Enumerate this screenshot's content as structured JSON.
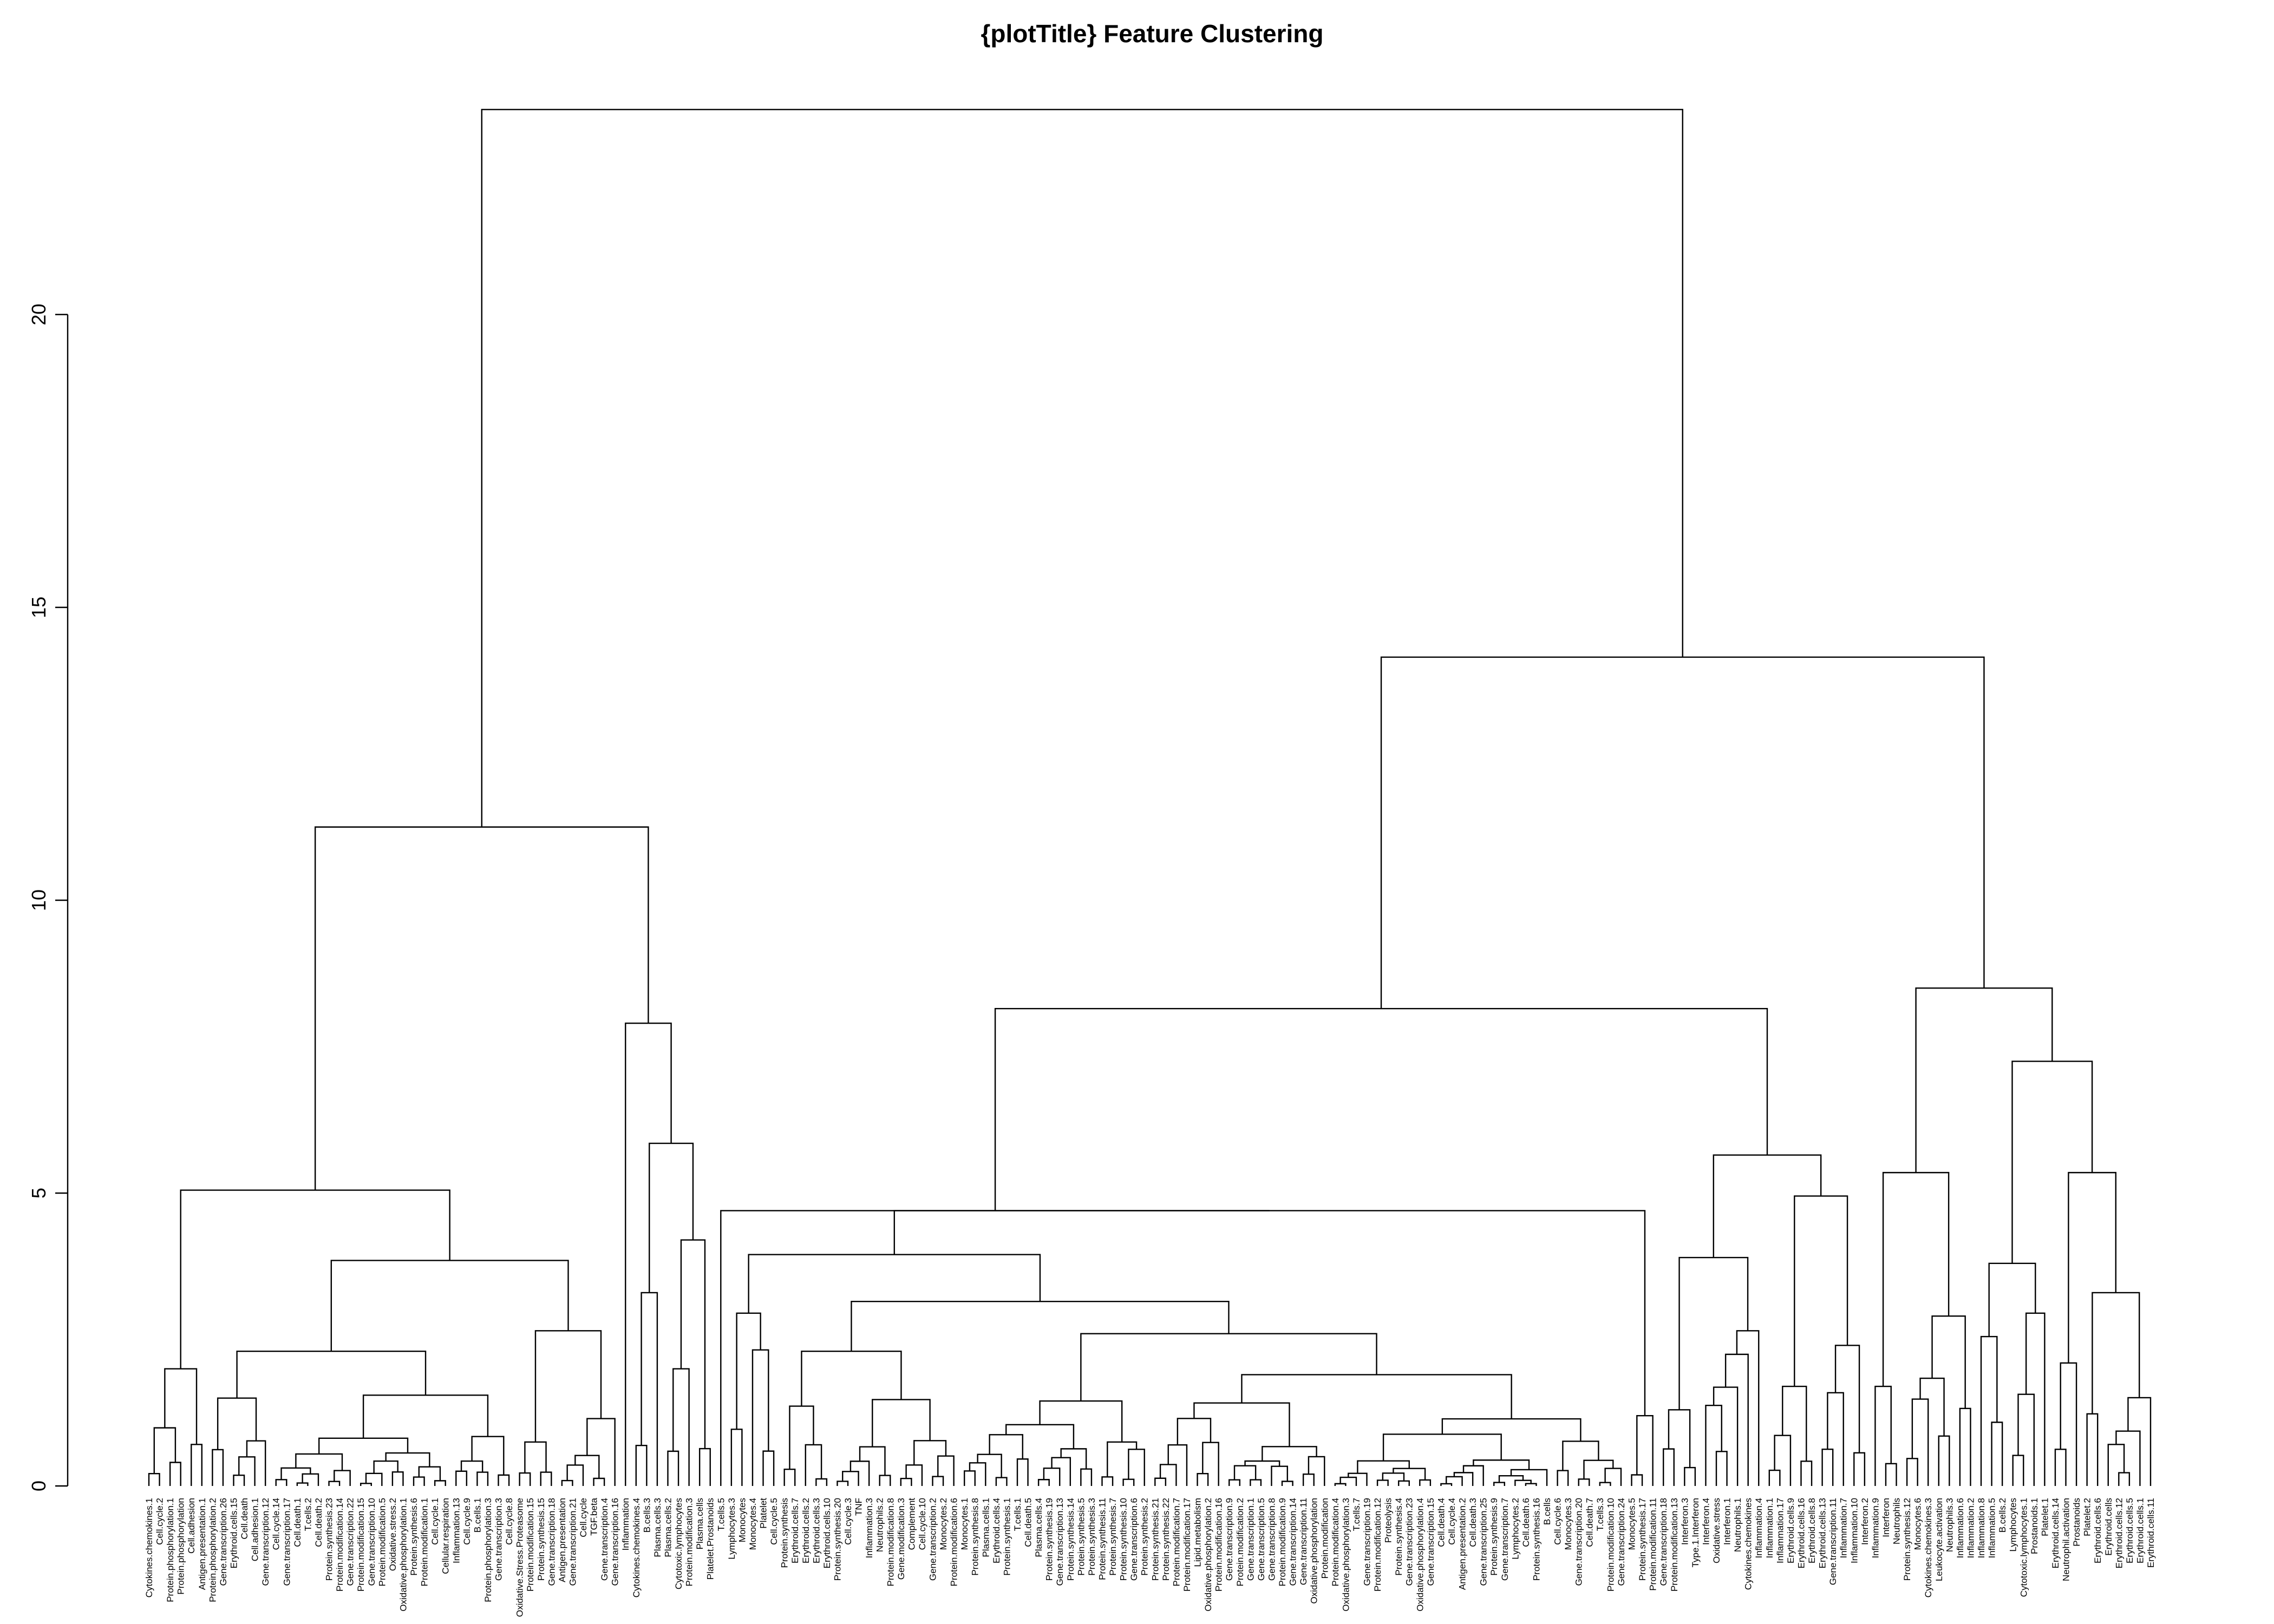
{
  "chart_data": {
    "type": "dendrogram",
    "title": "{plotTitle} Feature Clustering",
    "xlabel": "",
    "ylabel": "",
    "ylim": [
      0,
      23.5
    ],
    "yticks": [
      0,
      5,
      10,
      15,
      20
    ],
    "leaf_order": [
      "Cytokines.chemokines.1",
      "Cell.cycle.2",
      "Protein.phosphorylation.1",
      "Protein.phosphorylation",
      "Cell.adhesion",
      "Antigen.presentation.1",
      "Protein.phosphorylation.2",
      "Gene.transcription.26",
      "Erythroid.cells.15",
      "Cell.death",
      "Cell.adhesion.1",
      "Gene.transcription.12",
      "Cell.cycle.14",
      "Gene.transcription.17",
      "Cell.death.1",
      "T.cells.2",
      "Cell.death.2",
      "Protein.synthesis.23",
      "Protein.modification.14",
      "Gene.transcription.22",
      "Protein.modification.15",
      "Gene.transcription.10",
      "Protein.modification.5",
      "Oxidative.stress.2",
      "Oxidative.phosphorylation.1",
      "Protein.synthesis.6",
      "Protein.modification.1",
      "Cell.cycle.1",
      "Cellular.respiration",
      "Inflammation.13",
      "Cell.cycle.9",
      "B.cells.1",
      "Protein.phosphorylation.3",
      "Gene.transcription.3",
      "Cell.cycle.8",
      "Oxidative.Stress.Proteasome",
      "Protein.modification.15",
      "Protein.synthesis.15",
      "Gene.transcription.18",
      "Antigen.presentation",
      "Gene.transcription.21",
      "Cell.cycle",
      "TGF.beta",
      "Gene.transcription.4",
      "Gene.transcription.16",
      "Inflammation",
      "Cytokines.chemokines.4",
      "B.cells.3",
      "Plasma.cells.3",
      "Plasma.cells.2",
      "Cytotoxic.lymphocytes",
      "Protein.modification.3",
      "Plasma.cells",
      "Platelet.Prostanoids",
      "T.cells.5",
      "Lymphocytes.3",
      "Monocytes",
      "Monocytes.4",
      "Platelet",
      "Cell.cycle.5",
      "Protein.synthesis",
      "Erythroid.cells.7",
      "Erythroid.cells.2",
      "Erythroid.cells.3",
      "Erythroid.cells.10",
      "Protein.synthesis.20",
      "Cell.cycle.3",
      "TNF",
      "Inflammation.3",
      "Neutrophils.2",
      "Protein.modification.8",
      "Gene.modification.3",
      "Complement",
      "Cell.cycle.10",
      "Gene.transcription.2",
      "Monocytes.2",
      "Protein.modification.6",
      "Monocytes.1",
      "Protein.synthesis.8",
      "Plasma.cells.1",
      "Erythroid.cells.4",
      "Protein.synthesis.1",
      "T.cells.1",
      "Cell.death.5",
      "Plasma.cells.4",
      "Protein.synthesis.19",
      "Gene.transcription.13",
      "Protein.synthesis.14",
      "Protein.synthesis.5",
      "Protein.synthesis.3",
      "Protein.synthesis.11",
      "Protein.synthesis.7",
      "Protein.synthesis.10",
      "Gene.transcription.6",
      "Protein.synthesis.2",
      "Protein.synthesis.21",
      "Protein.synthesis.22",
      "Protein.modification.7",
      "Protein.modification.17",
      "Lipid.metabolism",
      "Oxidative.phosphorylation.2",
      "Protein.modification.16",
      "Gene.transcription.9",
      "Protein.modification.2",
      "Gene.transcription.1",
      "Gene.transcription.5",
      "Gene.transcription.8",
      "Protein.modification.9",
      "Gene.transcription.14",
      "Gene.transcription.11",
      "Oxidative.phosphorylation",
      "Protein.modification",
      "Protein.modification.4",
      "Oxidative.phosphorylation.3",
      "T.cells.7",
      "Gene.transcription.19",
      "Protein.modification.12",
      "Proteolysis",
      "Protein.synthesis.4",
      "Gene.transcription.23",
      "Oxidative.phosphorylation.4",
      "Gene.transcription.15",
      "Cell.death.4",
      "Cell.cycle.4",
      "Antigen.presentation.2",
      "Cell.death.3",
      "Gene.transcription.25",
      "Protein.synthesis.9",
      "Gene.transcription.7",
      "Lymphocytes.2",
      "Cell.death.6",
      "Protein.synthesis.16",
      "B.cells",
      "Cell.cycle.6",
      "Monocytes.3",
      "Gene.transcription.20",
      "Cell.death.7",
      "T.cells.3",
      "Protein.modification.10",
      "Gene.transcription.24",
      "Monocytes.5",
      "Protein.synthesis.17",
      "Protein.modification.11",
      "Gene.transcription.18",
      "Protein.modification.13",
      "Interferon.3",
      "Type.1.Interferon",
      "Interferon.4",
      "Oxidative.stress",
      "Interferon.1",
      "Neutrophils.1",
      "Cytokines.chemokines",
      "Inflammation.4",
      "Inflammation.1",
      "Inflammation.17",
      "Erythroid.cells.9",
      "Erythroid.cells.16",
      "Erythroid.cells.8",
      "Erythroid.cells.13",
      "Gene.transcription.11",
      "Inflammation.7",
      "Inflammation.10",
      "Interferon.2",
      "Inflammation.9",
      "Interferon",
      "Neutrophils",
      "Protein.synthesis.12",
      "Monocytes.6",
      "Cytokines.chemokines.3",
      "Leukocyte.activation",
      "Neutrophils.3",
      "Inflammation.6",
      "Inflammation.2",
      "Inflammation.8",
      "Inflammation.5",
      "B.cells.2",
      "Lymphocytes",
      "Cytotoxic.lymphocytes.1",
      "Prostanoids.1",
      "Platelet.1",
      "Erythroid.cells.14",
      "Neutrophil.activation",
      "Prostanoids",
      "Platelet.2",
      "Erythroid.cells.6",
      "Erythroid.cells",
      "Erythroid.cells.12",
      "Erythroid.cells.5",
      "Erythroid.cells.1",
      "Erythroid.cells.11"
    ]
  }
}
